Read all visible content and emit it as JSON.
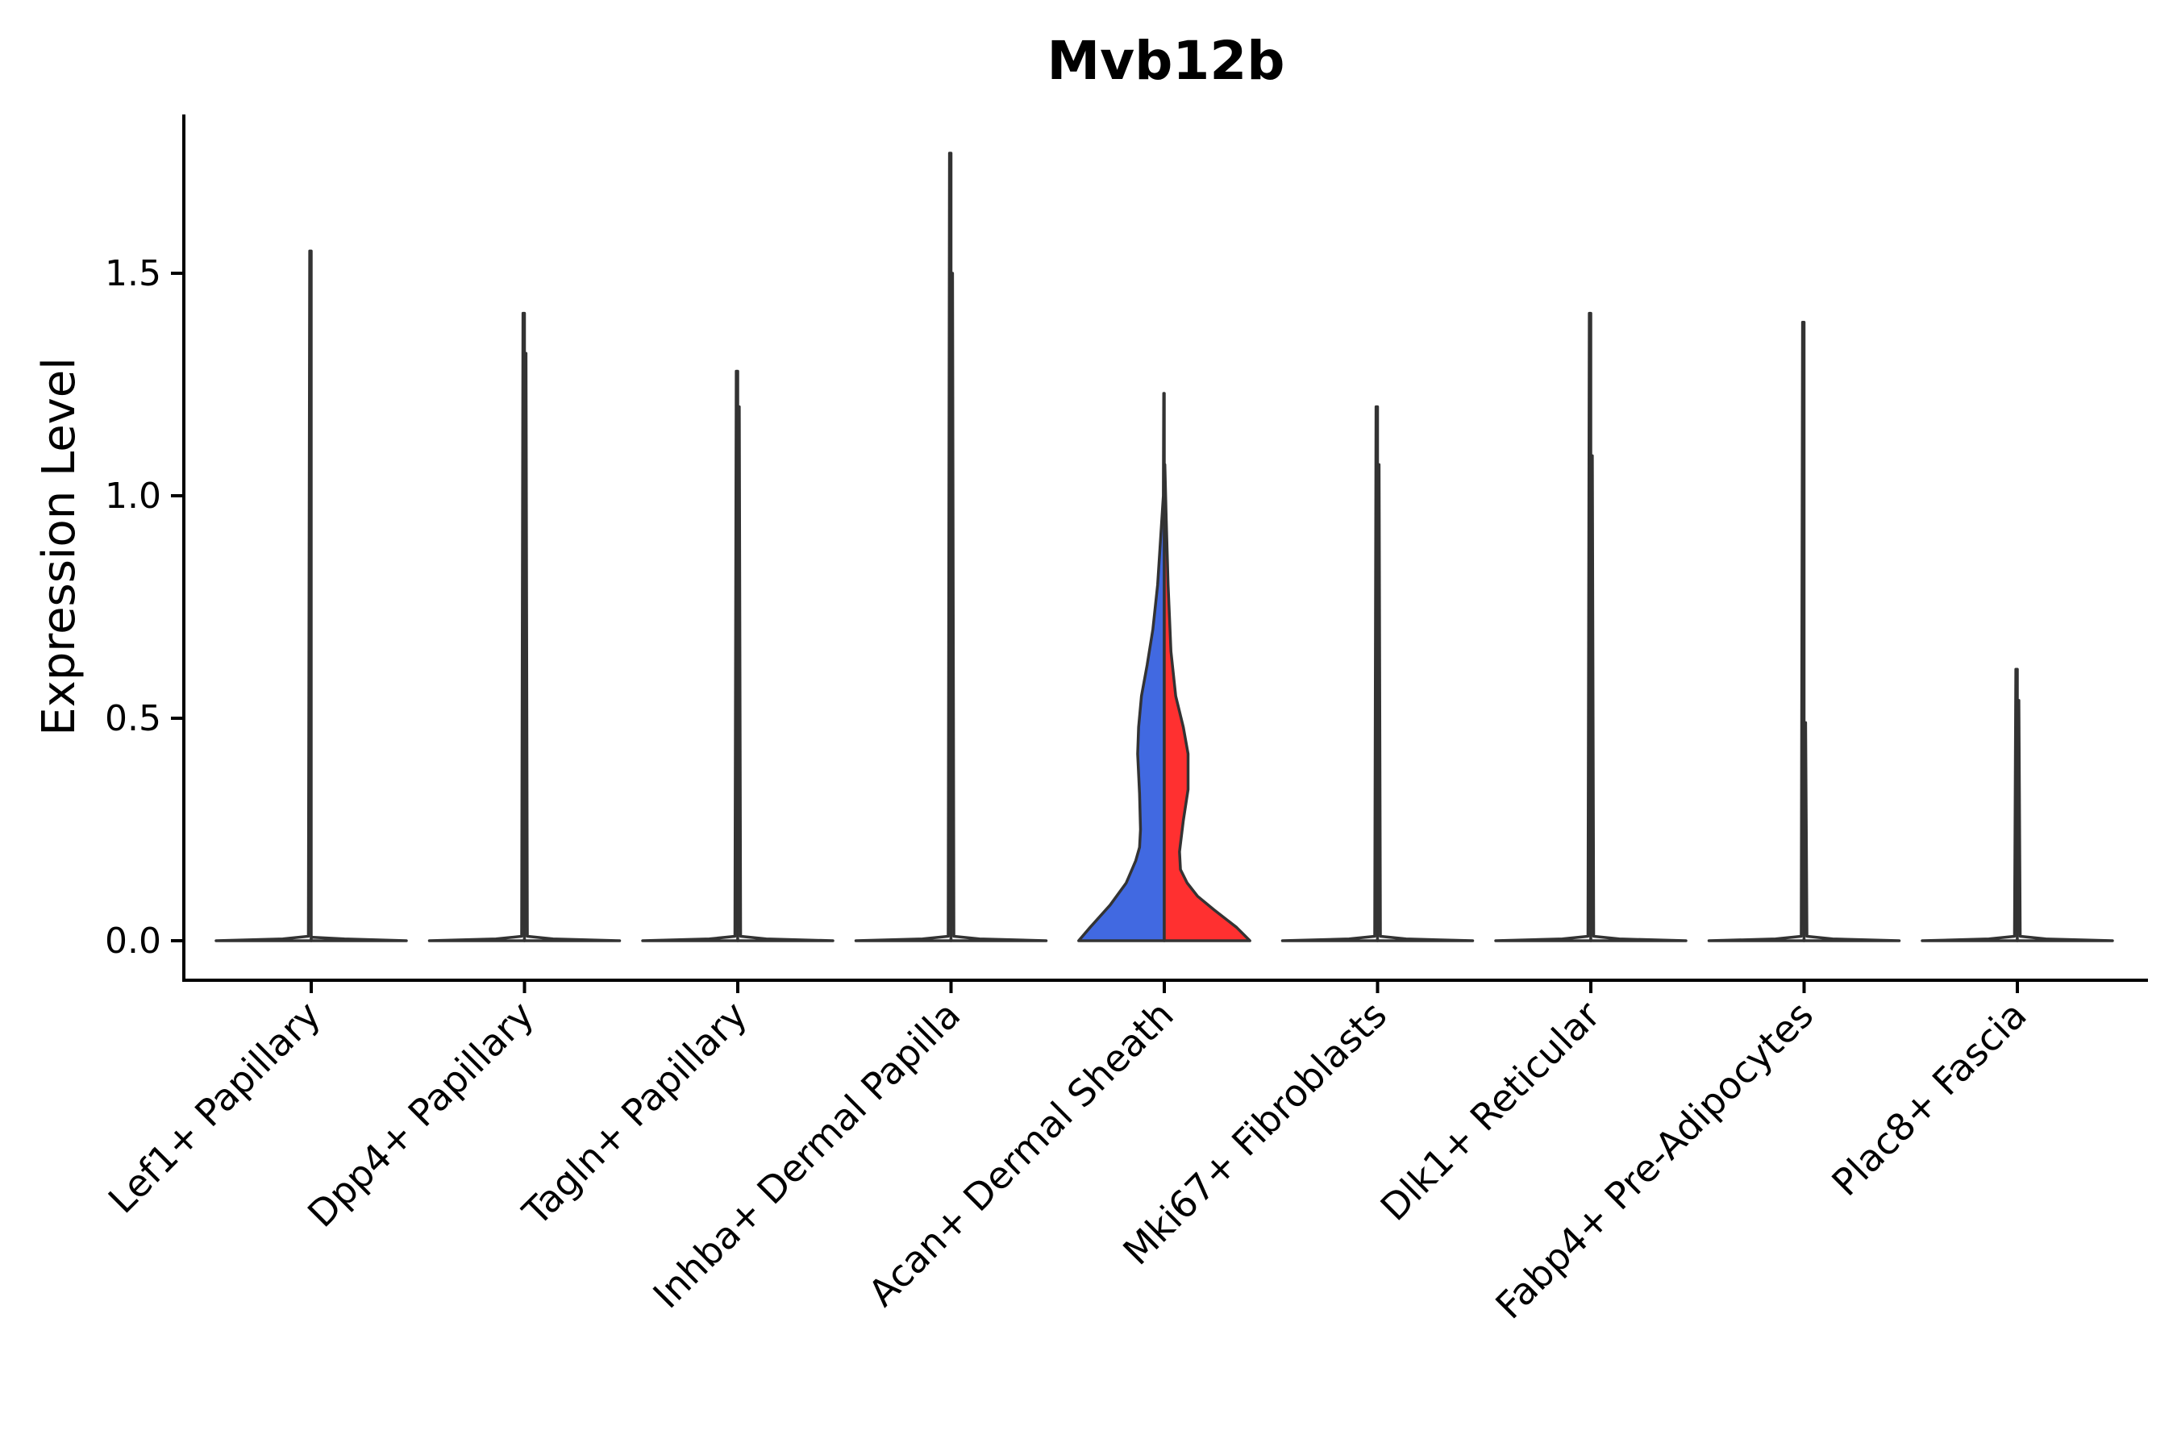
{
  "chart_data": {
    "type": "violin",
    "title": "Mvb12b",
    "xlabel": "",
    "ylabel": "Expression Level",
    "ylim": [
      -0.09,
      1.87
    ],
    "yticks": [
      0.0,
      0.5,
      1.0,
      1.5
    ],
    "ytick_labels": [
      "0.0",
      "0.5",
      "1.0",
      "1.5"
    ],
    "grid": false,
    "legend": "none",
    "categories": [
      "Lef1+ Papillary",
      "Dpp4+ Papillary",
      "Tagln+ Papillary",
      "Inhba+ Dermal Papilla",
      "Acan+ Dermal Sheath",
      "Mki67+ Fibroblasts",
      "Dlk1+ Reticular",
      "Fabp4+ Pre-Adipocytes",
      "Plac8+ Fascia"
    ],
    "groups": [
      {
        "category": "Lef1+ Papillary",
        "colors": {
          "left": "#ffffff",
          "right": "#ffffff"
        },
        "max": {
          "left": 1.55,
          "right": 0.0
        }
      },
      {
        "category": "Dpp4+ Papillary",
        "colors": {
          "left": "#ffffff",
          "right": "#ffffff"
        },
        "max": {
          "left": 1.41,
          "right": 1.32
        }
      },
      {
        "category": "Tagln+ Papillary",
        "colors": {
          "left": "#ffffff",
          "right": "#ffffff"
        },
        "max": {
          "left": 1.28,
          "right": 1.2
        }
      },
      {
        "category": "Inhba+ Dermal Papilla",
        "colors": {
          "left": "#ffffff",
          "right": "#ffffff"
        },
        "max": {
          "left": 1.77,
          "right": 1.5
        }
      },
      {
        "category": "Acan+ Dermal Sheath",
        "colors": {
          "left": "#4169e1",
          "right": "#ff3030"
        },
        "max": {
          "left": 1.23,
          "right": 1.07
        }
      },
      {
        "category": "Mki67+ Fibroblasts",
        "colors": {
          "left": "#ffffff",
          "right": "#ffffff"
        },
        "max": {
          "left": 1.2,
          "right": 1.07
        }
      },
      {
        "category": "Dlk1+ Reticular",
        "colors": {
          "left": "#ffffff",
          "right": "#ffffff"
        },
        "max": {
          "left": 1.41,
          "right": 1.09
        }
      },
      {
        "category": "Fabp4+ Pre-Adipocytes",
        "colors": {
          "left": "#ffffff",
          "right": "#ffffff"
        },
        "max": {
          "left": 1.39,
          "right": 0.49
        }
      },
      {
        "category": "Plac8+ Fascia",
        "colors": {
          "left": "#ffffff",
          "right": "#ffffff"
        },
        "max": {
          "left": 0.61,
          "right": 0.54
        }
      }
    ]
  }
}
